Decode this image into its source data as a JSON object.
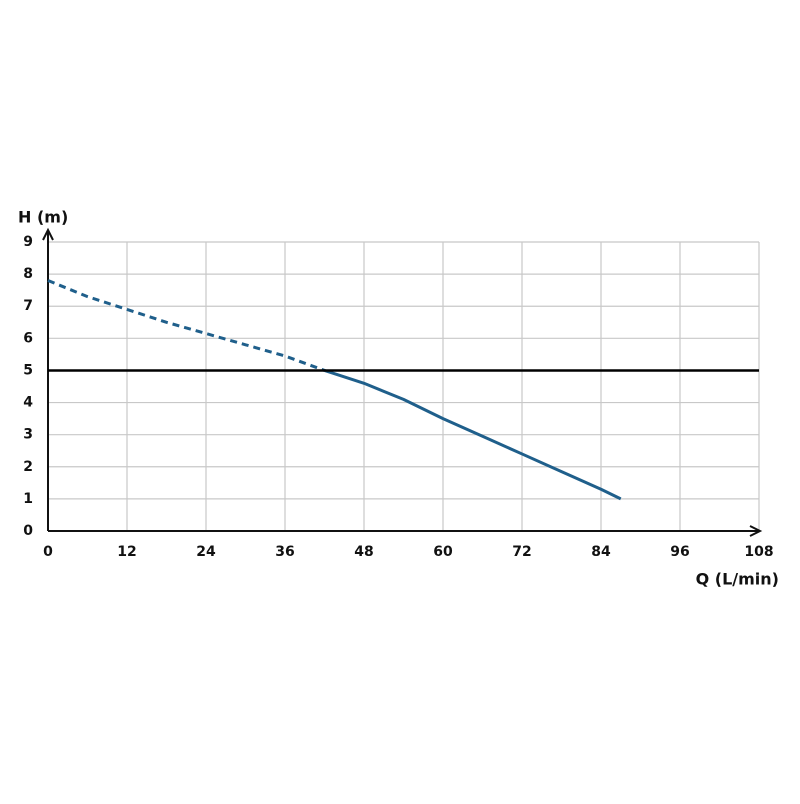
{
  "chart_data": {
    "type": "line",
    "x_label": "Q (L/min)",
    "y_label": "H (m)",
    "xlim": [
      0,
      108
    ],
    "xticks": [
      0,
      12,
      24,
      36,
      48,
      60,
      72,
      84,
      96,
      108
    ],
    "ylim": [
      0,
      9
    ],
    "yticks": [
      0,
      1,
      2,
      3,
      4,
      5,
      6,
      7,
      8,
      9
    ],
    "grid": true,
    "series": [
      {
        "color": "#1f5f8b",
        "dashed": true,
        "x": [
          0,
          6,
          12,
          18,
          24,
          30,
          36,
          42
        ],
        "values": [
          7.8,
          7.3,
          6.9,
          6.5,
          6.15,
          5.8,
          5.45,
          5.0
        ]
      },
      {
        "color": "#1f5f8b",
        "dashed": false,
        "x": [
          42,
          48,
          54,
          60,
          66,
          72,
          78,
          84,
          87
        ],
        "values": [
          5.0,
          4.6,
          4.1,
          3.5,
          2.95,
          2.4,
          1.85,
          1.3,
          1.0
        ]
      }
    ],
    "reference_line": {
      "value": 5,
      "color": "#000000"
    }
  }
}
